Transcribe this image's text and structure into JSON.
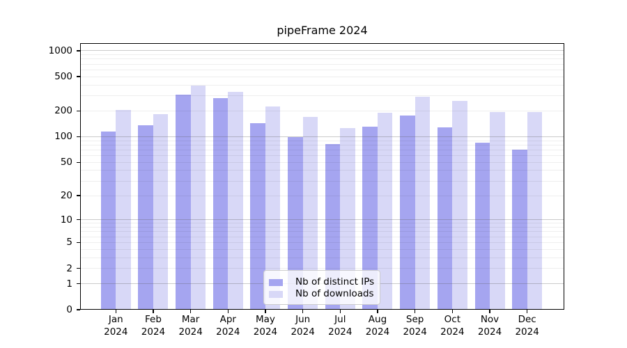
{
  "chart_data": {
    "type": "bar",
    "title": "pipeFrame 2024",
    "categories": [
      "Jan 2024",
      "Feb 2024",
      "Mar 2024",
      "Apr 2024",
      "May 2024",
      "Jun 2024",
      "Jul 2024",
      "Aug 2024",
      "Sep 2024",
      "Oct 2024",
      "Nov 2024",
      "Dec 2024"
    ],
    "series": [
      {
        "name": "Nb of distinct IPs",
        "color": "#a5a5f0",
        "values": [
          115,
          136,
          310,
          280,
          143,
          98,
          82,
          132,
          175,
          128,
          85,
          71
        ]
      },
      {
        "name": "Nb of downloads",
        "color": "#d8d8f7",
        "values": [
          204,
          184,
          396,
          330,
          224,
          171,
          127,
          192,
          293,
          262,
          195,
          195
        ]
      }
    ],
    "xlabel": "",
    "ylabel": "",
    "yscale": "log1p",
    "ylim": [
      0,
      1230
    ],
    "yticks": [
      0,
      1,
      2,
      5,
      10,
      20,
      50,
      100,
      200,
      500,
      1000
    ],
    "grid": "horizontal major (1,10,100,1000) + minor (2-9 per decade)",
    "legend_position": "inside bottom-center",
    "colors": {
      "major_grid": "#b5b5b5",
      "minor_grid": "#ededed",
      "spine": "#000000",
      "background": "#ffffff"
    }
  }
}
